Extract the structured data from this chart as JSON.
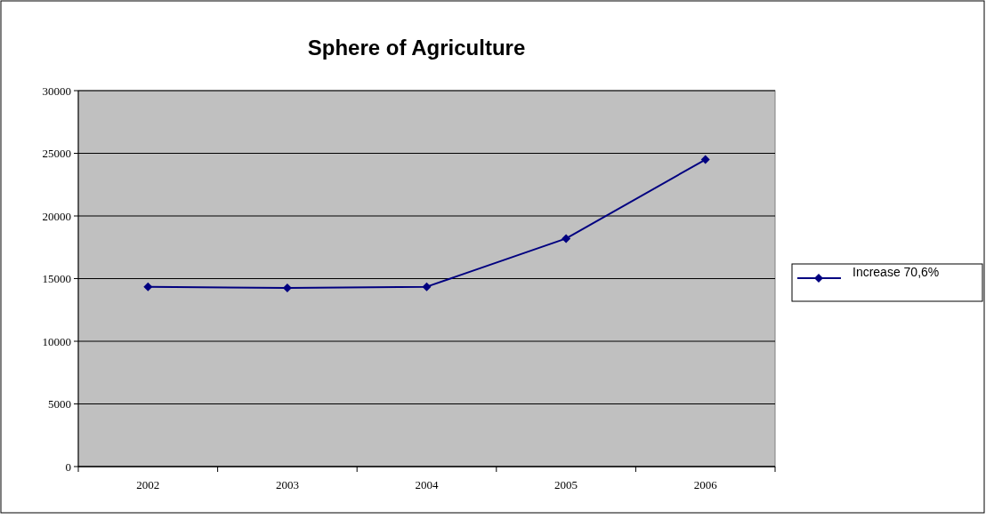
{
  "chart_data": {
    "type": "line",
    "title": "Sphere of Agriculture",
    "categories": [
      "2002",
      "2003",
      "2004",
      "2005",
      "2006"
    ],
    "series": [
      {
        "name": "Increase 70,6%",
        "color": "#000080",
        "values": [
          14350,
          14250,
          14350,
          18200,
          24500
        ]
      }
    ],
    "ylim": [
      0,
      30000
    ],
    "yticks": [
      0,
      5000,
      10000,
      15000,
      20000,
      25000,
      30000
    ],
    "grid": "y",
    "legend": "right",
    "marker": "diamond",
    "line_style": "solid"
  }
}
